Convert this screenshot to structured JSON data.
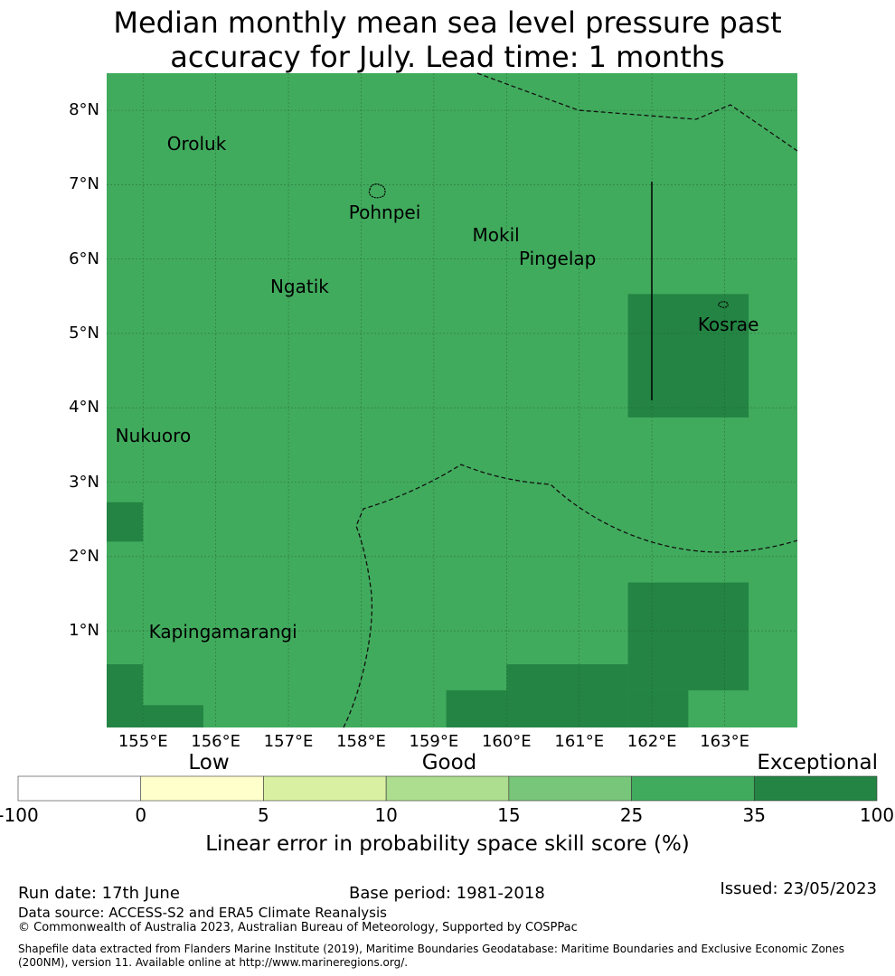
{
  "title": {
    "line1": "Median monthly mean sea level pressure past",
    "line2": "accuracy for July. Lead time: 1 months"
  },
  "map": {
    "lon_range": [
      154.5,
      164.0
    ],
    "lat_range": [
      -0.3,
      8.5
    ],
    "lat_ticks": [
      {
        "value": 8,
        "label": "8°N"
      },
      {
        "value": 7,
        "label": "7°N"
      },
      {
        "value": 6,
        "label": "6°N"
      },
      {
        "value": 5,
        "label": "5°N"
      },
      {
        "value": 4,
        "label": "4°N"
      },
      {
        "value": 3,
        "label": "3°N"
      },
      {
        "value": 2,
        "label": "2°N"
      },
      {
        "value": 1,
        "label": "1°N"
      }
    ],
    "lon_ticks": [
      {
        "value": 155,
        "label": "155°E"
      },
      {
        "value": 156,
        "label": "156°E"
      },
      {
        "value": 157,
        "label": "157°E"
      },
      {
        "value": 158,
        "label": "158°E"
      },
      {
        "value": 159,
        "label": "159°E"
      },
      {
        "value": 160,
        "label": "160°E"
      },
      {
        "value": 161,
        "label": "161°E"
      },
      {
        "value": 162,
        "label": "162°E"
      },
      {
        "value": 163,
        "label": "163°E"
      }
    ],
    "background_category": "25-35",
    "background_color": "#41ab5d",
    "exceptional_color": "#238443",
    "exceptional_cells": [
      {
        "lon": [
          161.67,
          163.33
        ],
        "lat": [
          3.87,
          5.53
        ]
      },
      {
        "lon": [
          154.5,
          155.0
        ],
        "lat": [
          2.2,
          2.73
        ]
      },
      {
        "lon": [
          161.67,
          163.33
        ],
        "lat": [
          0.2,
          1.65
        ]
      },
      {
        "lon": [
          160.0,
          161.67
        ],
        "lat": [
          -0.3,
          0.55
        ]
      },
      {
        "lon": [
          161.67,
          162.5
        ],
        "lat": [
          -0.3,
          0.2
        ]
      },
      {
        "lon": [
          159.17,
          160.0
        ],
        "lat": [
          -0.3,
          0.2
        ]
      },
      {
        "lon": [
          154.5,
          155.0
        ],
        "lat": [
          -0.3,
          0.55
        ]
      },
      {
        "lon": [
          155.0,
          155.83
        ],
        "lat": [
          -0.3,
          0.0
        ]
      }
    ],
    "places": [
      {
        "name": "Oroluk",
        "lon": 155.33,
        "lat": 7.55
      },
      {
        "name": "Pohnpei",
        "lon": 157.83,
        "lat": 6.63
      },
      {
        "name": "Mokil",
        "lon": 159.53,
        "lat": 6.32
      },
      {
        "name": "Pingelap",
        "lon": 160.17,
        "lat": 6.01
      },
      {
        "name": "Ngatik",
        "lon": 156.75,
        "lat": 5.63
      },
      {
        "name": "Kosrae",
        "lon": 162.63,
        "lat": 5.12
      },
      {
        "name": "Nukuoro",
        "lon": 154.62,
        "lat": 3.63
      },
      {
        "name": "Kapingamarangi",
        "lon": 155.08,
        "lat": 0.99
      }
    ]
  },
  "colorbar": {
    "category_labels": {
      "low": "Low",
      "good": "Good",
      "exceptional": "Exceptional"
    },
    "boundaries": [
      "-100",
      "0",
      "5",
      "10",
      "15",
      "25",
      "35",
      "100"
    ],
    "colors": [
      "#ffffff",
      "#ffffcc",
      "#d9f0a3",
      "#addd8e",
      "#78c679",
      "#41ab5d",
      "#238443"
    ],
    "label": "Linear error in probability space skill score (%)"
  },
  "footer": {
    "run_date": "Run date: 17th June",
    "base_period": "Base period: 1981-2018",
    "issued": "Issued: 23/05/2023",
    "data_source": "Data source: ACCESS-S2 and ERA5 Climate Reanalysis",
    "copyright": "© Commonwealth of Australia 2023, Australian Bureau of Meteorology, Supported by COSPPac",
    "shapefile_line1": "Shapefile data extracted from Flanders Marine Institute (2019), Maritime Boundaries Geodatabase: Maritime Boundaries and Exclusive Economic Zones",
    "shapefile_line2": "(200NM), version 11. Available online at http://www.marineregions.org/."
  }
}
